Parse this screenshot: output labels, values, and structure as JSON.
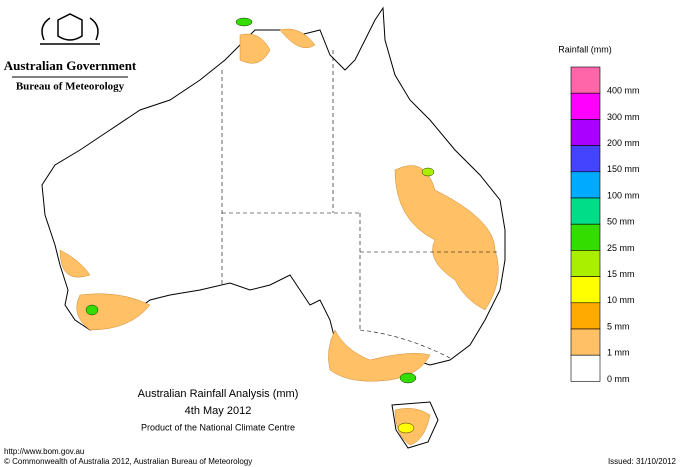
{
  "header": {
    "government": "Australian Government",
    "bureau": "Bureau of Meteorology"
  },
  "legend": {
    "title": "Rainfall (mm)",
    "colors": [
      "#ff66aa",
      "#ff00ff",
      "#aa00ff",
      "#4444ff",
      "#00aaff",
      "#00dd88",
      "#33dd00",
      "#aaee00",
      "#ffff00",
      "#ffaa00",
      "#ffc066",
      "#ffffff"
    ],
    "labels": [
      "400 mm",
      "300 mm",
      "200 mm",
      "150 mm",
      "100 mm",
      "50 mm",
      "25 mm",
      "15 mm",
      "10 mm",
      "5 mm",
      "1 mm",
      "0 mm"
    ]
  },
  "caption": {
    "title": "Australian Rainfall Analysis (mm)",
    "date": "4th May 2012",
    "product": "Product of the National Climate Centre"
  },
  "footer": {
    "url": "http://www.bom.gov.au",
    "copyright": "© Commonwealth of Australia 2012, Australian Bureau of Meteorology",
    "issued": "Issued: 31/10/2012"
  }
}
